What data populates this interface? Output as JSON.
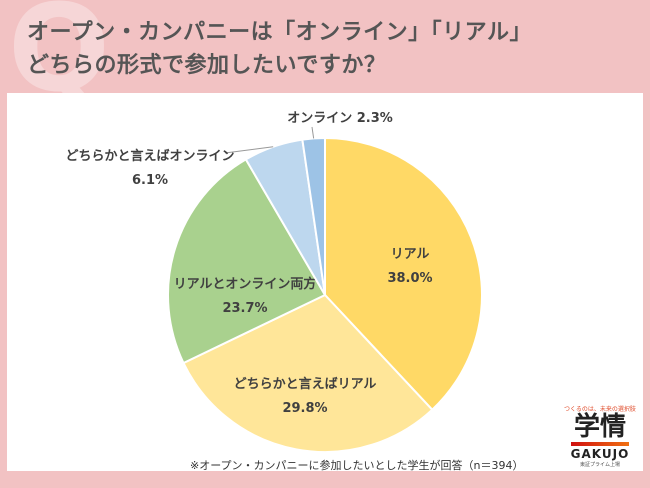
{
  "title": {
    "line1": "オープン・カンパニーは「オンライン」「リアル」",
    "line2": "どちらの形式で参加したいですか？",
    "q_mark": "Q"
  },
  "note": "※オープン・カンパニーに参加したいとした学生が回答（n＝394）",
  "logo": {
    "tagline": "つくるのは、未来の選択肢",
    "name_kanji": "学情",
    "name_latin": "GAKUJO",
    "sub": "東証プライム上場"
  },
  "chart_data": {
    "type": "pie",
    "start": "top",
    "direction": "clockwise",
    "slices": [
      {
        "label": "リアル",
        "value": 38.0,
        "display": "38.0%",
        "color": "#ffd966"
      },
      {
        "label": "どちらかと言えばリアル",
        "value": 29.8,
        "display": "29.8%",
        "color": "#ffe699"
      },
      {
        "label": "リアルとオンライン両方",
        "value": 23.7,
        "display": "23.7%",
        "color": "#a9d18e"
      },
      {
        "label": "どちらかと言えばオンライン",
        "value": 6.1,
        "display": "6.1%",
        "color": "#bdd7ee"
      },
      {
        "label": "オンライン",
        "value": 2.3,
        "display": "2.3%",
        "color": "#9dc3e6"
      }
    ]
  }
}
